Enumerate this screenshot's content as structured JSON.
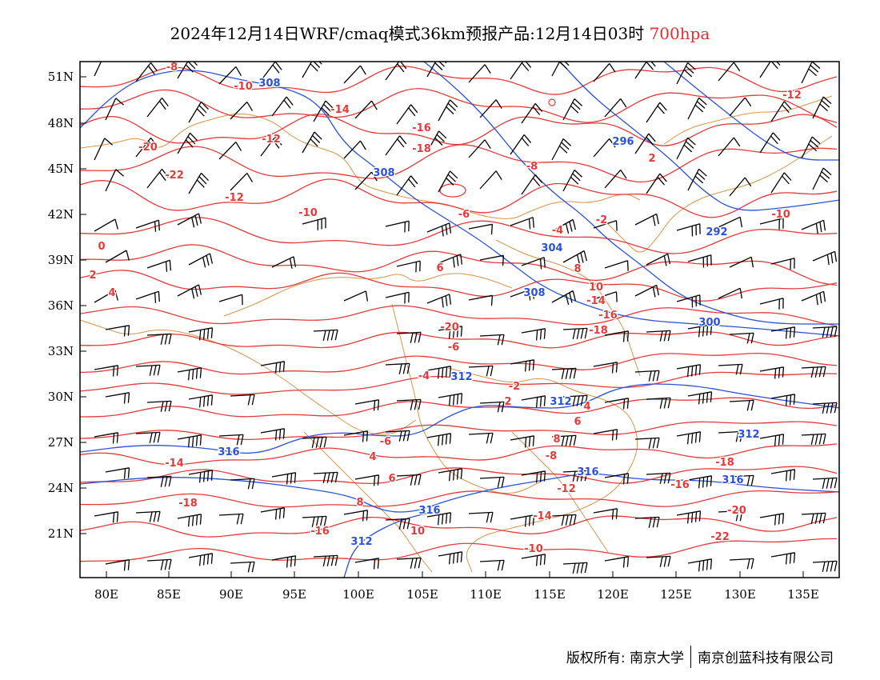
{
  "title": {
    "main": "2024年12月14日WRF/cmaq模式36km预报产品:12月14日03时",
    "level": "700hpa"
  },
  "colors": {
    "temperature": "#e63a3a",
    "height": "#2a52d8",
    "border": "#d9944a",
    "barb": "#000000",
    "frame": "#000000"
  },
  "axes": {
    "x_ticks": [
      "80E",
      "85E",
      "90E",
      "95E",
      "100E",
      "105E",
      "110E",
      "115E",
      "120E",
      "125E",
      "130E",
      "135E"
    ],
    "y_ticks": [
      "51N",
      "48N",
      "45N",
      "42N",
      "39N",
      "36N",
      "33N",
      "30N",
      "27N",
      "24N",
      "21N"
    ]
  },
  "temperature_labels": [
    "-8",
    "-10",
    "-12",
    "-14",
    "-16",
    "-18",
    "-20",
    "-22",
    "-12",
    "-10",
    "-8",
    "-6",
    "-4",
    "-2",
    "2",
    "0",
    "2",
    "4",
    "6",
    "8",
    "10",
    "-14",
    "-16",
    "-18",
    "-20",
    "-6",
    "-4",
    "-2",
    "2",
    "4",
    "6",
    "8",
    "-8",
    "-6",
    "4",
    "6",
    "8",
    "10",
    "-14",
    "-10",
    "-12",
    "-16",
    "-18",
    "-20",
    "-22",
    "-18",
    "-16",
    "-14",
    "-12",
    "-10"
  ],
  "height_labels": [
    "308",
    "308",
    "296",
    "292",
    "304",
    "308",
    "300",
    "312",
    "312",
    "312",
    "316",
    "316",
    "316",
    "316",
    "312"
  ],
  "footer": {
    "left": "版权所有: 南京大学",
    "right": "南京创蓝科技有限公司"
  }
}
